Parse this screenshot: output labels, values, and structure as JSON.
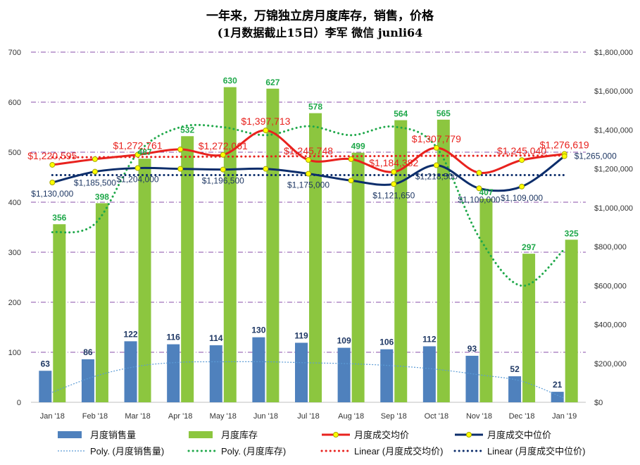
{
  "chart_data": {
    "type": "bar",
    "title": "一年来，万锦独立房月度库存，销售，价格",
    "subtitle": "(1月数据截止15日）李军 微信 junli64",
    "categories": [
      "Jan '18",
      "Feb '18",
      "Mar '18",
      "Apr '18",
      "May '18",
      "Jun '18",
      "Jul '18",
      "Aug '18",
      "Sep '18",
      "Oct '18",
      "Nov '18",
      "Dec '18",
      "Jan '19"
    ],
    "left_axis": {
      "min": 0,
      "max": 700,
      "ticks": [
        "0",
        "100",
        "200",
        "300",
        "400",
        "500",
        "600",
        "700"
      ]
    },
    "right_axis": {
      "min": 0,
      "max": 1800000,
      "ticks": [
        "$0",
        "$200,000",
        "$400,000",
        "$600,000",
        "$800,000",
        "$1,000,000",
        "$1,200,000",
        "$1,400,000",
        "$1,600,000",
        "$1,800,000"
      ]
    },
    "series": [
      {
        "name": "月度销售量",
        "type": "bar",
        "axis": "left",
        "color": "#4f81bd",
        "values": [
          63,
          86,
          122,
          116,
          114,
          130,
          119,
          109,
          106,
          112,
          93,
          52,
          21
        ],
        "labels": [
          "63",
          "86",
          "122",
          "116",
          "114",
          "130",
          "119",
          "109",
          "106",
          "112",
          "93",
          "52",
          "21"
        ]
      },
      {
        "name": "月度库存",
        "type": "bar",
        "axis": "left",
        "color": "#8cc63f",
        "values": [
          356,
          398,
          487,
          532,
          630,
          627,
          578,
          499,
          564,
          565,
          407,
          297,
          325
        ],
        "labels": [
          "356",
          "398",
          "487",
          "532",
          "630",
          "627",
          "578",
          "499",
          "564",
          "565",
          "407",
          "297",
          "325"
        ]
      },
      {
        "name": "月度成交均价",
        "type": "line",
        "axis": "right",
        "color": "#e8221e",
        "values": [
          1220595,
          1250000,
          1272761,
          1300000,
          1272061,
          1397713,
          1245748,
          1250000,
          1184382,
          1307779,
          1180000,
          1245040,
          1276619
        ],
        "labels": [
          "$1,220,595",
          "",
          "$1,272,761",
          "",
          "$1,272,061",
          "$1,397,713",
          "$1,245,748",
          "",
          "$1,184,382",
          "$1,307,779",
          "",
          "$1,245,040",
          "$1,276,619"
        ]
      },
      {
        "name": "月度成交中位价",
        "type": "line",
        "axis": "right",
        "color": "#0c2d6b",
        "values": [
          1130000,
          1185500,
          1204000,
          1200000,
          1196500,
          1200000,
          1175000,
          1140000,
          1121650,
          1218500,
          1100000,
          1109000,
          1265000
        ],
        "labels": [
          "$1,130,000",
          "$1,185,500",
          "$1,204,000",
          "",
          "$1,196,500",
          "",
          "$1,175,000",
          "",
          "$1,121,650",
          "$1,218,500",
          "$1,100,000",
          "$1,109,000",
          "$1,265,000"
        ]
      }
    ],
    "trendlines": [
      {
        "name": "Poly. (月度销售量)",
        "kind": "poly",
        "color": "#5b9bd5",
        "values": [
          20,
          52,
          72,
          80,
          81,
          81,
          79,
          77,
          73,
          66,
          55,
          42,
          8
        ]
      },
      {
        "name": "Poly. (月度库存)",
        "kind": "poly",
        "color": "#1fa84a",
        "values": [
          340,
          357,
          498,
          550,
          550,
          534,
          552,
          534,
          551,
          510,
          330,
          233,
          306
        ]
      },
      {
        "name": "Linear (月度成交均价)",
        "kind": "linear",
        "color": "#e8221e",
        "values": [
          1259000,
          1260000,
          1261000,
          1262000,
          1263000,
          1264000,
          1265000,
          1265000,
          1266000,
          1267000,
          1267000,
          1268000,
          1268000
        ]
      },
      {
        "name": "Linear (月度成交中位价)",
        "kind": "linear",
        "color": "#0c2d6b",
        "values": [
          1168000,
          1168000,
          1168000,
          1168000,
          1168000,
          1168000,
          1168000,
          1168000,
          1168000,
          1168000,
          1168000,
          1168000,
          1168000
        ]
      }
    ],
    "legend": {
      "position": "bottom",
      "items": [
        "月度销售量",
        "月度库存",
        "月度成交均价",
        "月度成交中位价",
        "Poly. (月度销售量)",
        "Poly. (月度库存)",
        "Linear (月度成交均价)",
        "Linear (月度成交中位价)"
      ]
    },
    "grid": true
  }
}
